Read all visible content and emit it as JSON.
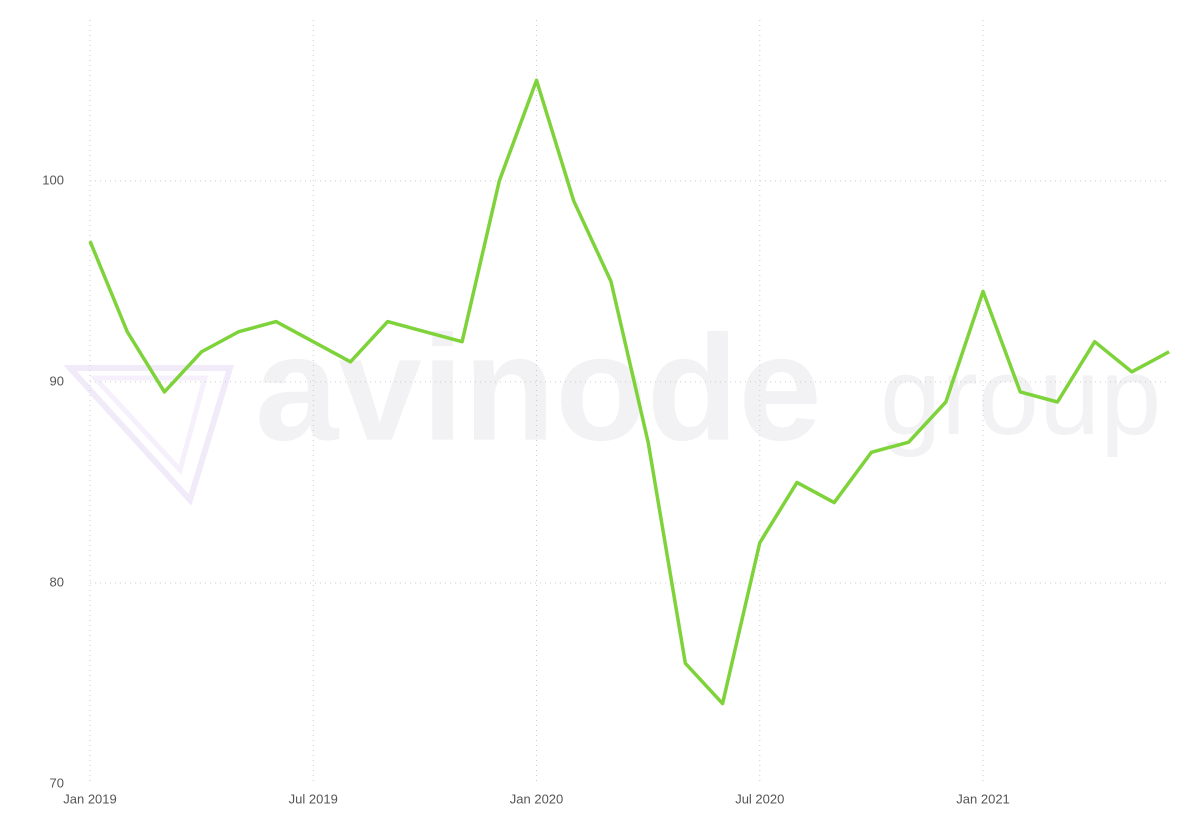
{
  "chart_data": {
    "type": "line",
    "watermark": [
      "avinode",
      "group"
    ],
    "categories": [
      "Jan 2019",
      "Feb 2019",
      "Mar 2019",
      "Apr 2019",
      "May 2019",
      "Jun 2019",
      "Jul 2019",
      "Aug 2019",
      "Sep 2019",
      "Oct 2019",
      "Nov 2019",
      "Dec 2019",
      "Jan 2020",
      "Feb 2020",
      "Mar 2020",
      "Apr 2020",
      "May 2020",
      "Jun 2020",
      "Jul 2020",
      "Aug 2020",
      "Sep 2020",
      "Oct 2020",
      "Nov 2020",
      "Dec 2020",
      "Jan 2021",
      "Feb 2021",
      "Mar 2021",
      "Apr 2021",
      "May 2021",
      "Jun 2021"
    ],
    "series": [
      {
        "color": "#7ed23a",
        "values": [
          97,
          92.5,
          89.5,
          91.5,
          92.5,
          93,
          92,
          91,
          93,
          92.5,
          92,
          100,
          105,
          99,
          95,
          87,
          76,
          74,
          82,
          85,
          84,
          86.5,
          87,
          89,
          94.5,
          89.5,
          89,
          92,
          90.5,
          91.5
        ]
      }
    ],
    "xticks": [
      "Jan 2019",
      "Jul 2019",
      "Jan 2020",
      "Jul 2020",
      "Jan 2021"
    ],
    "ylim": [
      70,
      108
    ],
    "yticks": [
      70,
      80,
      90,
      100
    ],
    "grid": true
  }
}
